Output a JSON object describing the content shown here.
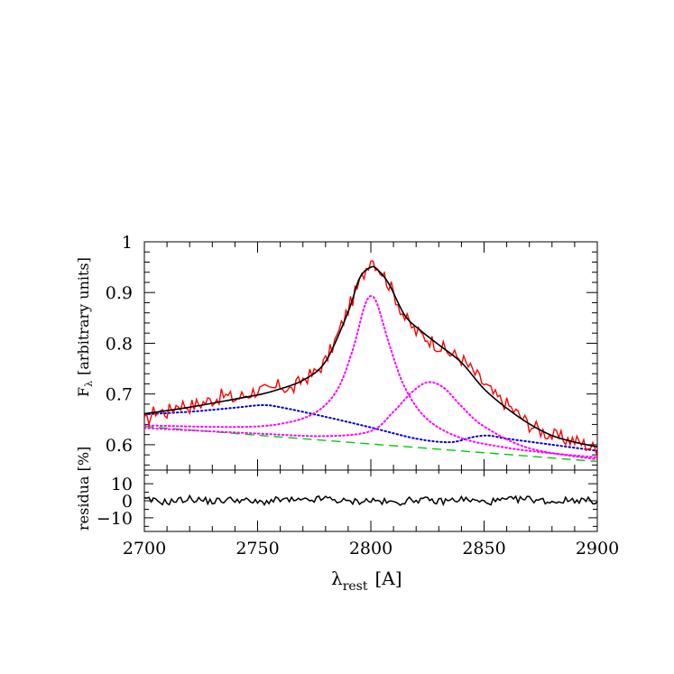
{
  "chart_data": [
    {
      "type": "line",
      "xlabel_main": "λ",
      "xlabel_sub": "rest",
      "xlabel_unit": "[A]",
      "ylabel_main": "F",
      "ylabel_sub": "λ",
      "ylabel_unit": "[arbitrary units]",
      "xlim": [
        2700,
        2900
      ],
      "ylim": [
        0.55,
        1.0
      ],
      "x_ticks": [
        2700,
        2750,
        2800,
        2850,
        2900
      ],
      "y_ticks": [
        0.6,
        0.7,
        0.8,
        0.9,
        1.0
      ],
      "y_tick_labels": [
        "0.6",
        "0.7",
        "0.8",
        "0.9",
        "1"
      ],
      "grid": false,
      "components": {
        "continuum": {
          "style": "dashed",
          "color": "#00cc00",
          "x": [
            2700,
            2900
          ],
          "y": [
            0.636,
            0.567
          ]
        },
        "fe_template": {
          "style": "dotted",
          "color": "#0000cc",
          "x": [
            2700,
            2720,
            2740,
            2752,
            2760,
            2780,
            2800,
            2820,
            2835,
            2845,
            2852,
            2860,
            2880,
            2900
          ],
          "y": [
            0.66,
            0.665,
            0.673,
            0.678,
            0.674,
            0.655,
            0.634,
            0.612,
            0.605,
            0.615,
            0.618,
            0.612,
            0.6,
            0.588
          ]
        },
        "mgii_narrow": {
          "style": "dotted",
          "color": "#ff00ff",
          "x": [
            2700,
            2740,
            2760,
            2775,
            2785,
            2792,
            2797,
            2800,
            2803,
            2808,
            2815,
            2825,
            2840,
            2860,
            2880,
            2900
          ],
          "y": [
            0.638,
            0.635,
            0.641,
            0.662,
            0.707,
            0.787,
            0.87,
            0.893,
            0.875,
            0.8,
            0.713,
            0.65,
            0.613,
            0.594,
            0.583,
            0.575
          ]
        },
        "mgii_broad": {
          "style": "dotted",
          "color": "#ff00ff",
          "x": [
            2700,
            2750,
            2780,
            2800,
            2810,
            2818,
            2825,
            2832,
            2840,
            2850,
            2870,
            2900
          ],
          "y": [
            0.633,
            0.622,
            0.617,
            0.627,
            0.665,
            0.703,
            0.723,
            0.713,
            0.676,
            0.636,
            0.593,
            0.571
          ]
        },
        "model": {
          "style": "solid",
          "color": "#000000",
          "x": [
            2700,
            2720,
            2740,
            2752,
            2760,
            2770,
            2780,
            2790,
            2795,
            2800,
            2803,
            2808,
            2815,
            2822,
            2830,
            2840,
            2850,
            2860,
            2870,
            2880,
            2890,
            2900
          ],
          "y": [
            0.661,
            0.674,
            0.69,
            0.7,
            0.71,
            0.727,
            0.764,
            0.862,
            0.928,
            0.95,
            0.945,
            0.917,
            0.855,
            0.825,
            0.797,
            0.762,
            0.71,
            0.672,
            0.641,
            0.618,
            0.605,
            0.596
          ]
        },
        "observed": {
          "style": "solid",
          "color": "#ff0000",
          "x": [
            2700,
            2705,
            2710,
            2715,
            2720,
            2725,
            2730,
            2735,
            2740,
            2745,
            2750,
            2755,
            2760,
            2765,
            2770,
            2775,
            2780,
            2785,
            2790,
            2795,
            2800,
            2805,
            2810,
            2815,
            2820,
            2825,
            2830,
            2835,
            2840,
            2845,
            2850,
            2855,
            2860,
            2865,
            2870,
            2875,
            2880,
            2885,
            2890,
            2895,
            2900
          ],
          "y": [
            0.643,
            0.668,
            0.664,
            0.681,
            0.676,
            0.682,
            0.689,
            0.697,
            0.69,
            0.699,
            0.708,
            0.705,
            0.717,
            0.707,
            0.73,
            0.74,
            0.765,
            0.812,
            0.868,
            0.918,
            0.97,
            0.94,
            0.9,
            0.85,
            0.822,
            0.81,
            0.795,
            0.78,
            0.77,
            0.745,
            0.72,
            0.695,
            0.68,
            0.66,
            0.64,
            0.628,
            0.618,
            0.612,
            0.608,
            0.6,
            0.59
          ]
        }
      }
    },
    {
      "type": "line",
      "ylabel": "residua [%]",
      "xlim": [
        2700,
        2900
      ],
      "ylim": [
        -18,
        18
      ],
      "y_ticks": [
        -10,
        0,
        10
      ],
      "y_tick_labels": [
        "−10",
        "0",
        "10"
      ],
      "series": [
        {
          "style": "solid",
          "color": "#000000",
          "x": [
            2700,
            2710,
            2720,
            2730,
            2740,
            2750,
            2760,
            2770,
            2780,
            2790,
            2800,
            2810,
            2820,
            2830,
            2840,
            2850,
            2860,
            2870,
            2880,
            2890,
            2900
          ],
          "y": [
            0.5,
            -0.8,
            1.2,
            -0.4,
            0.9,
            -1.1,
            0.6,
            -0.2,
            1.4,
            -0.7,
            0.3,
            -1.3,
            0.8,
            -0.5,
            1.0,
            -0.9,
            0.4,
            1.1,
            -0.6,
            0.7,
            -0.3
          ]
        }
      ]
    }
  ]
}
